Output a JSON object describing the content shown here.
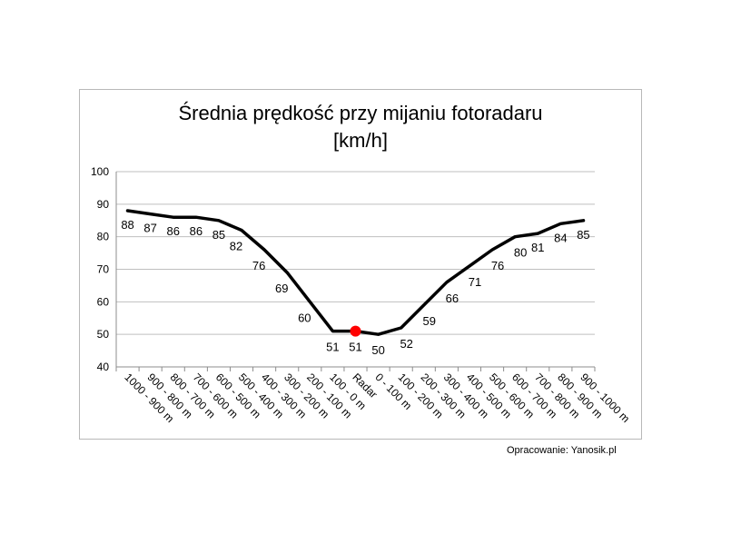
{
  "chart_data": {
    "type": "line",
    "title": [
      "Średnia prędkość przy mijaniu fotoradaru",
      "[km/h]"
    ],
    "xlabel": "",
    "ylabel": "",
    "categories": [
      "1000 - 900 m",
      "900 - 800 m",
      "800 - 700 m",
      "700 - 600 m",
      "600 - 500 m",
      "500 - 400 m",
      "400 - 300 m",
      "300 - 200 m",
      "200 - 100 m",
      "100 - 0 m",
      "Radar",
      "0 - 100 m",
      "100 - 200 m",
      "200 - 300 m",
      "300 - 400 m",
      "400 - 500 m",
      "500 - 600 m",
      "600 - 700 m",
      "700 - 800 m",
      "800 - 900 m",
      "900 - 1000 m"
    ],
    "series": [
      {
        "values": [
          88,
          87,
          86,
          86,
          85,
          82,
          76,
          69,
          60,
          51,
          51,
          50,
          52,
          59,
          66,
          71,
          76,
          80,
          81,
          84,
          85
        ]
      }
    ],
    "data_labels": [
      "88",
      "87",
      "86",
      "86",
      "85",
      "82",
      "76",
      "69",
      "60",
      "51",
      "51",
      "50",
      "52",
      "59",
      "66",
      "71",
      "76",
      "80",
      "81",
      "84",
      "85"
    ],
    "highlight_index": 10,
    "ylim": [
      40,
      100
    ],
    "yticks": [
      40,
      50,
      60,
      70,
      80,
      90,
      100
    ],
    "grid": true,
    "legend": "none",
    "colors": {
      "line": "#000000",
      "highlight": "#ff0000",
      "grid": "#bfbfbf",
      "axis": "#8c8c8c"
    }
  },
  "source_note": "Opracowanie: Yanosik.pl"
}
